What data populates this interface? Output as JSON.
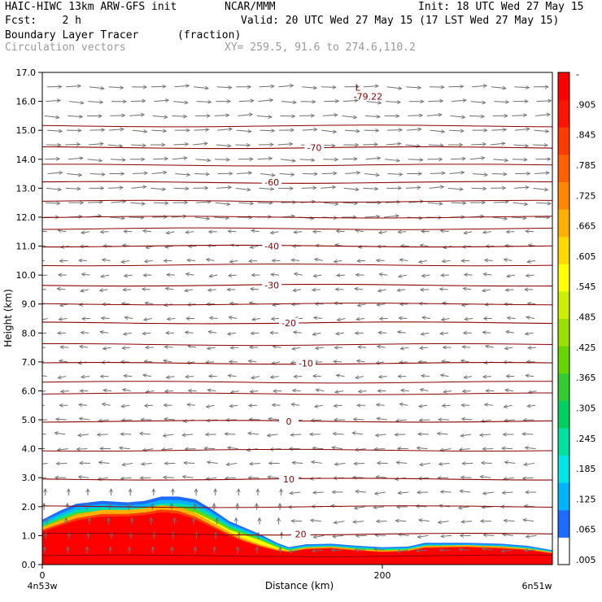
{
  "header": {
    "line1_left": "HAIC-HIWC 13km ARW-GFS init",
    "line1_mid": "NCAR/MMM",
    "line1_right": "Init: 18 UTC Wed 27 May 15",
    "line2_left": "Fcst:    2 h",
    "line2_right": "Valid: 20 UTC Wed 27 May 15 (17 LST Wed 27 May 15)",
    "line3_left": "Boundary Layer Tracer",
    "line3_mid": "(fraction)",
    "line4_left": "Circulation vectors",
    "line4_right": "XY= 259.5, 91.6 to 274.6,110.2"
  },
  "colors": {
    "contour": "#8b0000",
    "vector": "#707070",
    "axis": "#000000"
  },
  "chart_data": {
    "type": "heatmap",
    "title": "Boundary Layer Tracer",
    "units": "(fraction)",
    "overlay": "Circulation vectors",
    "xlabel": "Distance (km)",
    "ylabel": "Height (km)",
    "xlim": [
      0,
      300
    ],
    "ylim": [
      0,
      17
    ],
    "x_ticks": [
      0,
      200
    ],
    "x_tick_labels": [
      "0",
      "200"
    ],
    "x_end_labels": {
      "left": "4n53w",
      "right": "6n51w"
    },
    "y_ticks": [
      0,
      1,
      2,
      3,
      4,
      5,
      6,
      7,
      8,
      9,
      10,
      11,
      12,
      13,
      14,
      15,
      16,
      17
    ],
    "y_tick_labels": [
      "0.0",
      "1.0",
      "2.0",
      "3.0",
      "4.0",
      "5.0",
      "6.0",
      "7.0",
      "8.0",
      "9.0",
      "10.0",
      "11.0",
      "12.0",
      "13.0",
      "14.0",
      "15.0",
      "16.0",
      "17.0"
    ],
    "colorbar": {
      "labels": [
        ".005",
        ".065",
        ".125",
        ".185",
        ".245",
        ".305",
        ".365",
        ".425",
        ".485",
        ".545",
        ".605",
        ".665",
        ".725",
        ".785",
        ".845",
        ".905",
        "-"
      ],
      "colors": [
        "#ffffff",
        "#1e6cff",
        "#00b4ff",
        "#00e6e6",
        "#00e0a0",
        "#00d060",
        "#33cc33",
        "#66d600",
        "#99e000",
        "#ccee00",
        "#ffff00",
        "#ffd800",
        "#ffb000",
        "#ff8800",
        "#ff6000",
        "#ff3c00",
        "#ff1400",
        "#ff0000"
      ]
    },
    "tracer_top_km": [
      [
        0,
        1.55
      ],
      [
        10,
        1.85
      ],
      [
        20,
        2.1
      ],
      [
        35,
        2.2
      ],
      [
        50,
        2.15
      ],
      [
        60,
        2.2
      ],
      [
        70,
        2.35
      ],
      [
        80,
        2.35
      ],
      [
        90,
        2.25
      ],
      [
        100,
        1.9
      ],
      [
        110,
        1.5
      ],
      [
        118,
        1.3
      ],
      [
        128,
        1.05
      ],
      [
        138,
        0.75
      ],
      [
        145,
        0.6
      ],
      [
        155,
        0.7
      ],
      [
        170,
        0.72
      ],
      [
        185,
        0.65
      ],
      [
        200,
        0.6
      ],
      [
        215,
        0.62
      ],
      [
        225,
        0.75
      ],
      [
        250,
        0.75
      ],
      [
        270,
        0.72
      ],
      [
        285,
        0.65
      ],
      [
        300,
        0.5
      ]
    ],
    "tracer_core_km": [
      [
        0,
        1.2
      ],
      [
        10,
        1.4
      ],
      [
        20,
        1.6
      ],
      [
        35,
        1.75
      ],
      [
        50,
        1.75
      ],
      [
        60,
        1.8
      ],
      [
        70,
        1.9
      ],
      [
        80,
        1.85
      ],
      [
        90,
        1.65
      ],
      [
        100,
        1.35
      ],
      [
        110,
        1.05
      ],
      [
        118,
        0.85
      ],
      [
        128,
        0.65
      ],
      [
        138,
        0.5
      ],
      [
        145,
        0.45
      ],
      [
        155,
        0.55
      ],
      [
        170,
        0.58
      ],
      [
        185,
        0.5
      ],
      [
        200,
        0.45
      ],
      [
        215,
        0.48
      ],
      [
        225,
        0.6
      ],
      [
        250,
        0.62
      ],
      [
        270,
        0.58
      ],
      [
        285,
        0.52
      ],
      [
        300,
        0.4
      ]
    ],
    "temperature_contours": [
      {
        "label": "-70",
        "height_km": 14.4,
        "label_x": 160
      },
      {
        "label": "-60",
        "height_km": 13.2,
        "label_x": 135
      },
      {
        "label": "-40",
        "height_km": 11.0,
        "label_x": 135
      },
      {
        "label": "-30",
        "height_km": 9.65,
        "label_x": 135
      },
      {
        "label": "-20",
        "height_km": 8.35,
        "label_x": 145
      },
      {
        "label": "-10",
        "height_km": 6.95,
        "label_x": 155
      },
      {
        "label": "0",
        "height_km": 4.95,
        "label_x": 145
      },
      {
        "label": "10",
        "height_km": 2.95,
        "label_x": 145
      },
      {
        "label": "20",
        "height_km": 1.05,
        "label_x": 152
      }
    ],
    "other_contours_km": [
      15.15,
      13.8,
      12.55,
      12.0,
      11.6,
      10.35,
      9.0,
      7.6,
      6.3,
      5.9,
      3.95,
      2.0,
      0.3
    ],
    "low_marker": {
      "symbol": "L",
      "value": "-79.22",
      "x": 185,
      "height_km": 16.2
    },
    "vector_field": {
      "upper": {
        "from_km": 12.0,
        "to_km": 17.0,
        "direction": "east"
      },
      "middle": {
        "from_km": 5.0,
        "to_km": 12.0,
        "direction": "west"
      },
      "lower": {
        "from_km": 0.2,
        "to_km": 5.0,
        "direction": "west"
      }
    }
  }
}
